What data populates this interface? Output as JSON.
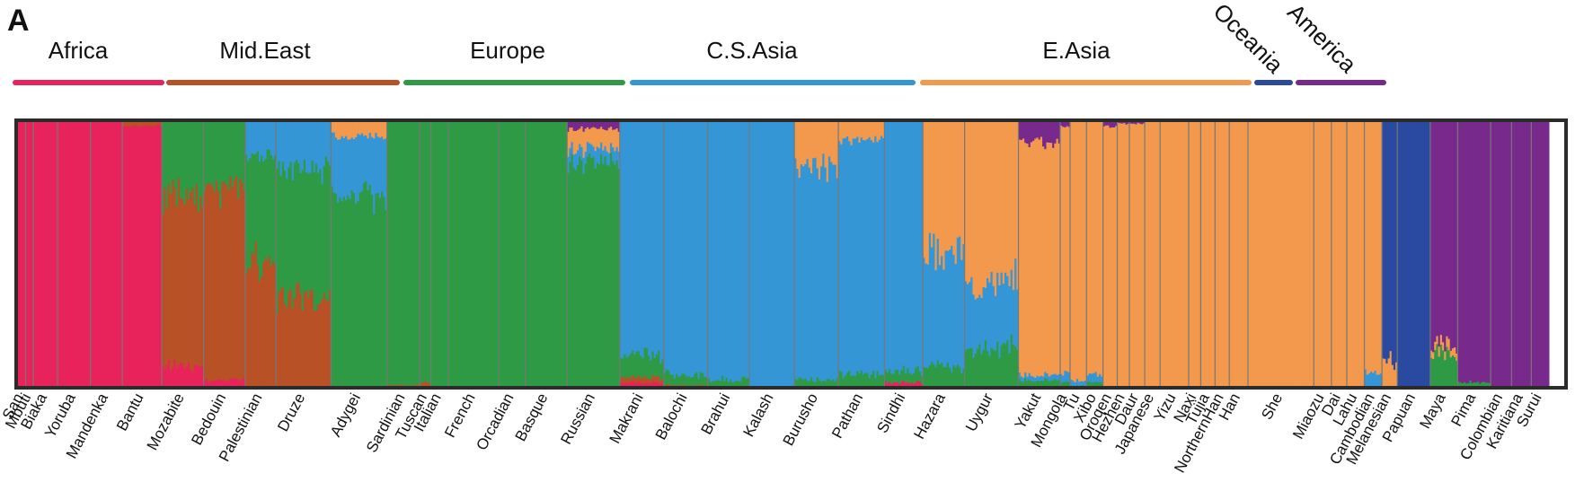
{
  "panel_label": "A",
  "colors": {
    "africa": "#E8225A",
    "mideast": "#B95127",
    "europe": "#2E9A45",
    "csasia": "#3596D6",
    "easia": "#F2994D",
    "oceania": "#2A4AA1",
    "america": "#782A8C",
    "border": "#2b2b2b",
    "separator": "#777777"
  },
  "chart_data": {
    "type": "bar",
    "title": "",
    "xlabel": "",
    "ylabel": "",
    "stacked": true,
    "ylim": [
      0,
      1
    ],
    "components": [
      "Africa",
      "Middle East",
      "Europe",
      "C.S.Asia",
      "E.Asia",
      "Oceania",
      "America"
    ],
    "regions": [
      {
        "name": "Africa",
        "color_key": "africa",
        "populations": [
          "San",
          "Mbuti",
          "Biaka",
          "Yoruba",
          "Mandenka",
          "Bantu"
        ]
      },
      {
        "name": "Mid.East",
        "color_key": "mideast",
        "populations": [
          "Mozabite",
          "Bedouin",
          "Palestinian",
          "Druze"
        ]
      },
      {
        "name": "Europe",
        "color_key": "europe",
        "populations": [
          "Adygei",
          "Sardinian",
          "Tuscan",
          "Italian",
          "French",
          "Orcadian",
          "Basque",
          "Russian"
        ]
      },
      {
        "name": "C.S.Asia",
        "color_key": "csasia",
        "populations": [
          "Makrani",
          "Balochi",
          "Brahui",
          "Kalash",
          "Burusho",
          "Pathan",
          "Sindhi"
        ]
      },
      {
        "name": "E.Asia",
        "color_key": "easia",
        "populations": [
          "Hazara",
          "Uygur",
          "Yakut",
          "Mongola",
          "Tu",
          "Xibo",
          "Oroqen",
          "Hezhen",
          "Daur",
          "Japanese",
          "Yizu",
          "Naxi",
          "Tujia",
          "NorthernHan",
          "Han",
          "She",
          "Miaozu",
          "Dai",
          "Lahu",
          "Cambodian"
        ]
      },
      {
        "name": "Oceania",
        "color_key": "oceania",
        "populations": [
          "Melanesian",
          "Papuan"
        ]
      },
      {
        "name": "America",
        "color_key": "america",
        "populations": [
          "Maya",
          "Pima",
          "Colombian",
          "Karitiana",
          "Surui"
        ]
      }
    ],
    "population_ancestry": [
      {
        "population": "San",
        "proportions": [
          1.0,
          0,
          0,
          0,
          0,
          0,
          0
        ]
      },
      {
        "population": "Mbuti",
        "proportions": [
          1.0,
          0,
          0,
          0,
          0,
          0,
          0
        ]
      },
      {
        "population": "Biaka",
        "proportions": [
          1.0,
          0,
          0,
          0,
          0,
          0,
          0
        ]
      },
      {
        "population": "Yoruba",
        "proportions": [
          1.0,
          0,
          0,
          0,
          0,
          0,
          0
        ]
      },
      {
        "population": "Mandenka",
        "proportions": [
          1.0,
          0,
          0,
          0,
          0,
          0,
          0
        ]
      },
      {
        "population": "Bantu",
        "proportions": [
          0.98,
          0.02,
          0,
          0,
          0,
          0,
          0
        ]
      },
      {
        "population": "Mozabite",
        "proportions": [
          0.08,
          0.65,
          0.27,
          0,
          0,
          0,
          0
        ]
      },
      {
        "population": "Bedouin",
        "proportions": [
          0.03,
          0.72,
          0.25,
          0,
          0,
          0,
          0
        ]
      },
      {
        "population": "Palestinian",
        "proportions": [
          0,
          0.47,
          0.4,
          0.13,
          0,
          0,
          0
        ]
      },
      {
        "population": "Druze",
        "proportions": [
          0,
          0.34,
          0.48,
          0.18,
          0,
          0,
          0
        ]
      },
      {
        "population": "Adygei",
        "proportions": [
          0,
          0,
          0.72,
          0.22,
          0.06,
          0,
          0
        ]
      },
      {
        "population": "Sardinian",
        "proportions": [
          0,
          0.01,
          0.99,
          0,
          0,
          0,
          0
        ]
      },
      {
        "population": "Tuscan",
        "proportions": [
          0,
          0.02,
          0.98,
          0,
          0,
          0,
          0
        ]
      },
      {
        "population": "Italian",
        "proportions": [
          0,
          0,
          1.0,
          0,
          0,
          0,
          0
        ]
      },
      {
        "population": "French",
        "proportions": [
          0,
          0,
          1.0,
          0,
          0,
          0,
          0
        ]
      },
      {
        "population": "Orcadian",
        "proportions": [
          0,
          0,
          1.0,
          0,
          0,
          0,
          0
        ]
      },
      {
        "population": "Basque",
        "proportions": [
          0,
          0,
          1.0,
          0,
          0,
          0,
          0
        ]
      },
      {
        "population": "Russian",
        "proportions": [
          0,
          0,
          0.85,
          0.05,
          0.07,
          0,
          0.03
        ]
      },
      {
        "population": "Makrani",
        "proportions": [
          0.02,
          0.02,
          0.08,
          0.88,
          0,
          0,
          0
        ]
      },
      {
        "population": "Balochi",
        "proportions": [
          0,
          0.01,
          0.04,
          0.95,
          0,
          0,
          0
        ]
      },
      {
        "population": "Brahui",
        "proportions": [
          0,
          0,
          0.03,
          0.97,
          0,
          0,
          0
        ]
      },
      {
        "population": "Kalash",
        "proportions": [
          0,
          0,
          0,
          1.0,
          0,
          0,
          0
        ]
      },
      {
        "population": "Burusho",
        "proportions": [
          0,
          0,
          0.03,
          0.8,
          0.17,
          0,
          0
        ]
      },
      {
        "population": "Pathan",
        "proportions": [
          0,
          0,
          0.05,
          0.88,
          0.07,
          0,
          0
        ]
      },
      {
        "population": "Sindhi",
        "proportions": [
          0.02,
          0,
          0.04,
          0.94,
          0,
          0,
          0
        ]
      },
      {
        "population": "Hazara",
        "proportions": [
          0,
          0,
          0.08,
          0.42,
          0.5,
          0,
          0
        ]
      },
      {
        "population": "Uygur",
        "proportions": [
          0,
          0,
          0.15,
          0.25,
          0.6,
          0,
          0
        ]
      },
      {
        "population": "Yakut",
        "proportions": [
          0,
          0,
          0.03,
          0.02,
          0.87,
          0,
          0.08
        ]
      },
      {
        "population": "Mongola",
        "proportions": [
          0,
          0,
          0.02,
          0.03,
          0.93,
          0,
          0.02
        ]
      },
      {
        "population": "Tu",
        "proportions": [
          0,
          0,
          0.01,
          0.02,
          0.97,
          0,
          0
        ]
      },
      {
        "population": "Xibo",
        "proportions": [
          0,
          0,
          0.02,
          0.03,
          0.95,
          0,
          0
        ]
      },
      {
        "population": "Oroqen",
        "proportions": [
          0,
          0,
          0,
          0,
          0.98,
          0,
          0.02
        ]
      },
      {
        "population": "Hezhen",
        "proportions": [
          0,
          0,
          0,
          0,
          0.99,
          0,
          0.01
        ]
      },
      {
        "population": "Daur",
        "proportions": [
          0,
          0,
          0,
          0,
          0.99,
          0,
          0.01
        ]
      },
      {
        "population": "Japanese",
        "proportions": [
          0,
          0,
          0,
          0,
          1.0,
          0,
          0
        ]
      },
      {
        "population": "Yizu",
        "proportions": [
          0,
          0,
          0,
          0,
          1.0,
          0,
          0
        ]
      },
      {
        "population": "Naxi",
        "proportions": [
          0,
          0,
          0,
          0,
          1.0,
          0,
          0
        ]
      },
      {
        "population": "Tujia",
        "proportions": [
          0,
          0,
          0,
          0,
          1.0,
          0,
          0
        ]
      },
      {
        "population": "NorthernHan",
        "proportions": [
          0,
          0,
          0,
          0,
          1.0,
          0,
          0
        ]
      },
      {
        "population": "Han",
        "proportions": [
          0,
          0,
          0,
          0,
          1.0,
          0,
          0
        ]
      },
      {
        "population": "She",
        "proportions": [
          0,
          0,
          0,
          0,
          1.0,
          0,
          0
        ]
      },
      {
        "population": "Miaozu",
        "proportions": [
          0,
          0,
          0,
          0,
          1.0,
          0,
          0
        ]
      },
      {
        "population": "Dai",
        "proportions": [
          0,
          0,
          0,
          0,
          1.0,
          0,
          0
        ]
      },
      {
        "population": "Lahu",
        "proportions": [
          0,
          0,
          0,
          0,
          1.0,
          0,
          0
        ]
      },
      {
        "population": "Cambodian",
        "proportions": [
          0,
          0,
          0,
          0.05,
          0.95,
          0,
          0
        ]
      },
      {
        "population": "Melanesian",
        "proportions": [
          0,
          0,
          0,
          0,
          0.1,
          0.9,
          0
        ]
      },
      {
        "population": "Papuan",
        "proportions": [
          0,
          0,
          0,
          0,
          0,
          1.0,
          0
        ]
      },
      {
        "population": "Maya",
        "proportions": [
          0,
          0,
          0.12,
          0,
          0.03,
          0,
          0.85
        ]
      },
      {
        "population": "Pima",
        "proportions": [
          0,
          0,
          0.02,
          0,
          0,
          0,
          0.98
        ]
      },
      {
        "population": "Colombian",
        "proportions": [
          0,
          0,
          0,
          0,
          0,
          0,
          1.0
        ]
      },
      {
        "population": "Karitiana",
        "proportions": [
          0,
          0,
          0,
          0,
          0,
          0,
          1.0
        ]
      },
      {
        "population": "Surui",
        "proportions": [
          0,
          0,
          0,
          0,
          0,
          0,
          1.0
        ]
      }
    ]
  }
}
